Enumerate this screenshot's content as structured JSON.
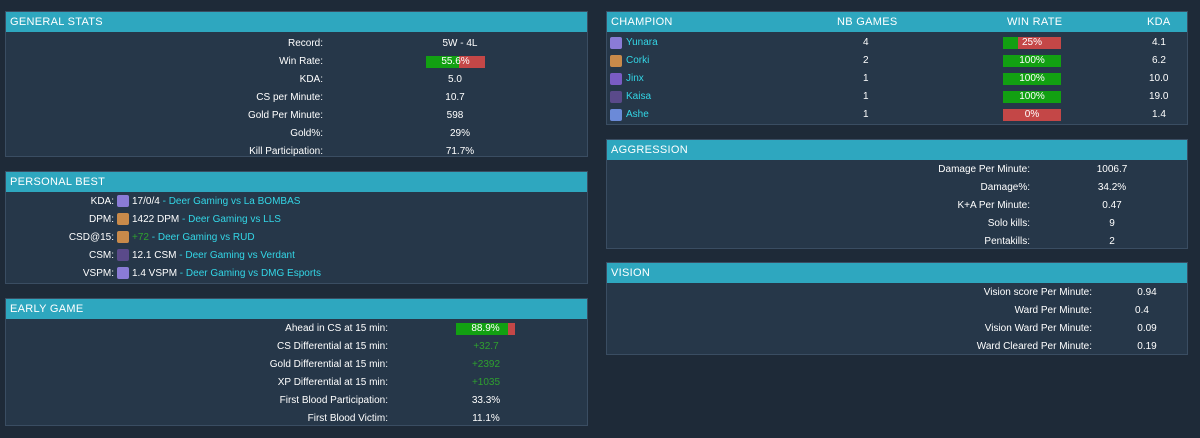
{
  "general_stats": {
    "title": "GENERAL STATS",
    "rows": [
      {
        "label": "Record:",
        "value": "5W - 4L"
      },
      {
        "label": "Win Rate:",
        "value": "55.6%",
        "bar": 0.556
      },
      {
        "label": "KDA:",
        "value": "5.0"
      },
      {
        "label": "CS per Minute:",
        "value": "10.7"
      },
      {
        "label": "Gold Per Minute:",
        "value": "598"
      },
      {
        "label": "Gold%:",
        "value": "29%"
      },
      {
        "label": "Kill Participation:",
        "value": "71.7%"
      }
    ]
  },
  "personal_best": {
    "title": "PERSONAL BEST",
    "rows": [
      {
        "label": "KDA:",
        "icon": "yunara-icon",
        "value": "17/0/4",
        "sep": " - ",
        "link": "Deer Gaming vs La BOMBAS"
      },
      {
        "label": "DPM:",
        "icon": "corki-icon",
        "value": "1422 DPM",
        "sep": " - ",
        "link": "Deer Gaming vs LLS"
      },
      {
        "label": "CSD@15:",
        "icon": "corki-icon",
        "value": "+72",
        "sep": " - ",
        "link": "Deer Gaming vs RUD"
      },
      {
        "label": "CSM:",
        "icon": "kaisa-icon",
        "value": "12.1 CSM",
        "sep": " - ",
        "link": "Deer Gaming vs Verdant"
      },
      {
        "label": "VSPM:",
        "icon": "yunara-icon",
        "value": "1.4 VSPM",
        "sep": " - ",
        "link": "Deer Gaming vs DMG Esports"
      }
    ]
  },
  "early_game": {
    "title": "EARLY GAME",
    "rows": [
      {
        "label": "Ahead in CS at 15 min:",
        "value": "88.9%",
        "bar": 0.889
      },
      {
        "label": "CS Differential at 15 min:",
        "value": "+32.7",
        "positive": true
      },
      {
        "label": "Gold Differential at 15 min:",
        "value": "+2392",
        "positive": true
      },
      {
        "label": "XP Differential at 15 min:",
        "value": "+1035",
        "positive": true
      },
      {
        "label": "First Blood Participation:",
        "value": "33.3%"
      },
      {
        "label": "First Blood Victim:",
        "value": "11.1%"
      }
    ]
  },
  "champions": {
    "headers": [
      "CHAMPION",
      "NB GAMES",
      "WIN RATE",
      "KDA"
    ],
    "rows": [
      {
        "icon": "yunara-icon",
        "color": "#8a7bd6",
        "name": "Yunara",
        "games": "4",
        "winrate": "25%",
        "winrate_fraction": 0.25,
        "kda": "4.1"
      },
      {
        "icon": "corki-icon",
        "color": "#c88a4a",
        "name": "Corki",
        "games": "2",
        "winrate": "100%",
        "winrate_fraction": 1.0,
        "kda": "6.2"
      },
      {
        "icon": "jinx-icon",
        "color": "#7a5cc4",
        "name": "Jinx",
        "games": "1",
        "winrate": "100%",
        "winrate_fraction": 1.0,
        "kda": "10.0"
      },
      {
        "icon": "kaisa-icon",
        "color": "#5a4a8a",
        "name": "Kaisa",
        "games": "1",
        "winrate": "100%",
        "winrate_fraction": 1.0,
        "kda": "19.0"
      },
      {
        "icon": "ashe-icon",
        "color": "#6b8ad8",
        "name": "Ashe",
        "games": "1",
        "winrate": "0%",
        "winrate_fraction": 0.0,
        "kda": "1.4"
      }
    ]
  },
  "aggression": {
    "title": "AGGRESSION",
    "rows": [
      {
        "label": "Damage Per Minute:",
        "value": "1006.7"
      },
      {
        "label": "Damage%:",
        "value": "34.2%"
      },
      {
        "label": "K+A Per Minute:",
        "value": "0.47"
      },
      {
        "label": "Solo kills:",
        "value": "9"
      },
      {
        "label": "Pentakills:",
        "value": "2"
      }
    ]
  },
  "vision": {
    "title": "VISION",
    "rows": [
      {
        "label": "Vision score Per Minute:",
        "value": "0.94"
      },
      {
        "label": "Ward Per Minute:",
        "value": "0.4"
      },
      {
        "label": "Vision Ward Per Minute:",
        "value": "0.09"
      },
      {
        "label": "Ward Cleared Per Minute:",
        "value": "0.19"
      }
    ]
  }
}
